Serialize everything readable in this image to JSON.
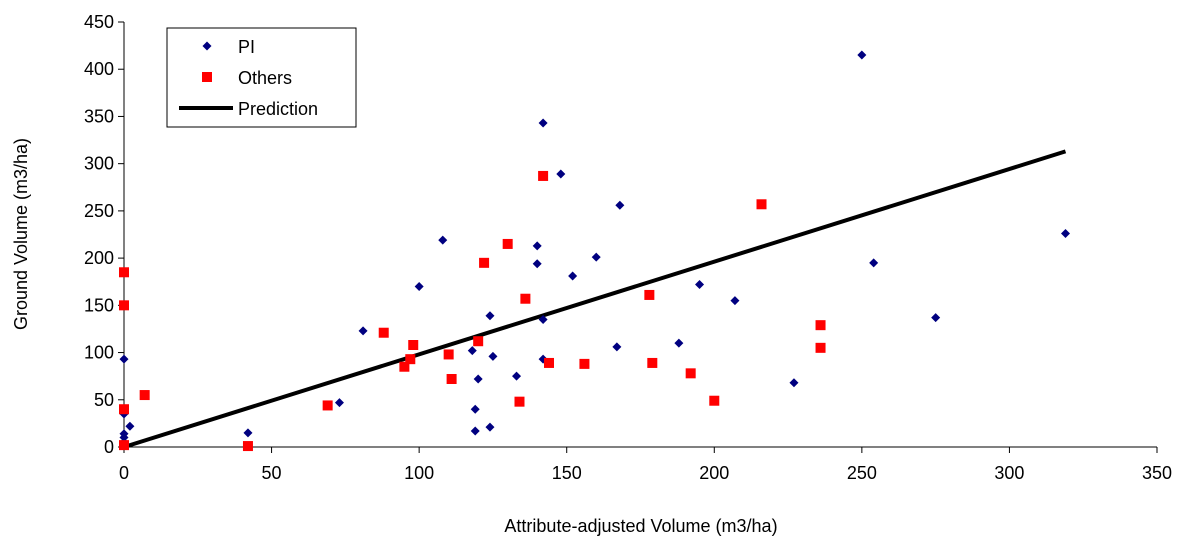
{
  "chart_data": {
    "type": "scatter",
    "xlabel": "Attribute-adjusted Volume (m3/ha)",
    "ylabel": "Ground Volume (m3/ha)",
    "xlim": [
      0,
      350
    ],
    "ylim": [
      0,
      450
    ],
    "xticks": [
      0,
      50,
      100,
      150,
      200,
      250,
      300,
      350
    ],
    "yticks": [
      0,
      50,
      100,
      150,
      200,
      250,
      300,
      350,
      400,
      450
    ],
    "grid": false,
    "legend_position": "top-left",
    "series": [
      {
        "name": "PI",
        "marker": "diamond",
        "color": "#000080",
        "points": [
          [
            0,
            93
          ],
          [
            0,
            35
          ],
          [
            0,
            14
          ],
          [
            0,
            10
          ],
          [
            0,
            5
          ],
          [
            2,
            22
          ],
          [
            42,
            15
          ],
          [
            73,
            47
          ],
          [
            81,
            123
          ],
          [
            100,
            170
          ],
          [
            108,
            219
          ],
          [
            118,
            102
          ],
          [
            119,
            40
          ],
          [
            119,
            17
          ],
          [
            120,
            72
          ],
          [
            124,
            21
          ],
          [
            124,
            139
          ],
          [
            125,
            96
          ],
          [
            133,
            75
          ],
          [
            140,
            213
          ],
          [
            140,
            194
          ],
          [
            142,
            135
          ],
          [
            142,
            93
          ],
          [
            142,
            343
          ],
          [
            148,
            289
          ],
          [
            152,
            181
          ],
          [
            160,
            201
          ],
          [
            167,
            106
          ],
          [
            168,
            256
          ],
          [
            188,
            110
          ],
          [
            195,
            172
          ],
          [
            207,
            155
          ],
          [
            227,
            68
          ],
          [
            250,
            415
          ],
          [
            254,
            195
          ],
          [
            275,
            137
          ],
          [
            319,
            226
          ]
        ]
      },
      {
        "name": "Others",
        "marker": "square",
        "color": "#ff0000",
        "points": [
          [
            0,
            185
          ],
          [
            0,
            150
          ],
          [
            0,
            40
          ],
          [
            0,
            2
          ],
          [
            7,
            55
          ],
          [
            42,
            1
          ],
          [
            69,
            44
          ],
          [
            88,
            121
          ],
          [
            95,
            85
          ],
          [
            97,
            93
          ],
          [
            98,
            108
          ],
          [
            110,
            98
          ],
          [
            111,
            72
          ],
          [
            120,
            112
          ],
          [
            122,
            195
          ],
          [
            130,
            215
          ],
          [
            134,
            48
          ],
          [
            136,
            157
          ],
          [
            142,
            287
          ],
          [
            144,
            89
          ],
          [
            156,
            88
          ],
          [
            178,
            161
          ],
          [
            179,
            89
          ],
          [
            192,
            78
          ],
          [
            200,
            49
          ],
          [
            216,
            257
          ],
          [
            236,
            129
          ],
          [
            236,
            105
          ]
        ]
      },
      {
        "name": "Prediction",
        "type": "line",
        "color": "#000000",
        "points": [
          [
            0,
            0
          ],
          [
            319,
            313
          ]
        ]
      }
    ]
  }
}
